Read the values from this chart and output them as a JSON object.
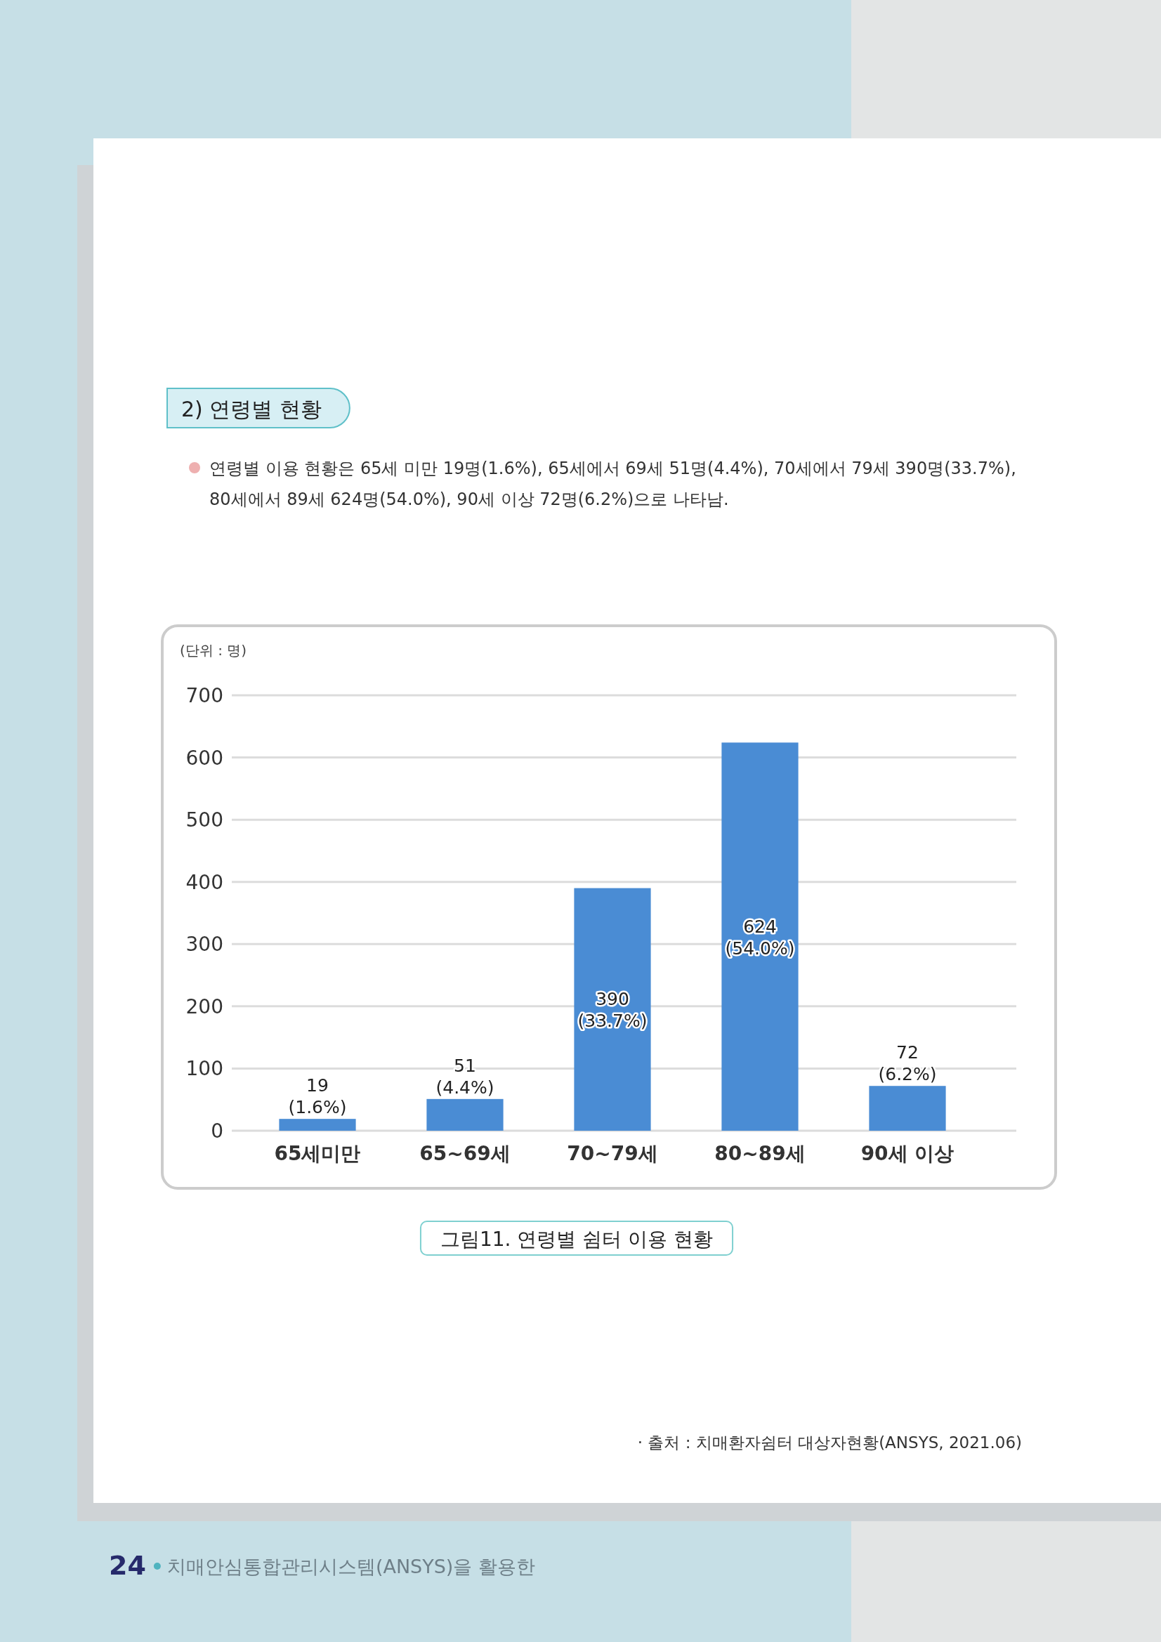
{
  "chart_data": {
    "type": "bar",
    "title": "그림11. 연령별 쉼터 이용 현황",
    "ylabel": "(단위 : 명)",
    "categories": [
      "65세미만",
      "65~69세",
      "70~79세",
      "80~89세",
      "90세 이상"
    ],
    "values": [
      19,
      51,
      390,
      624,
      72
    ],
    "color": "#4a8cd4",
    "value_labels": [
      "19\n(1.6%)",
      "51\n(4.4%)",
      "390\n(33.7%)",
      "624\n(54.0%)",
      "72\n(6.2%)"
    ],
    "ylim": [
      0,
      700
    ],
    "yticks": [
      0,
      100,
      200,
      300,
      400,
      500,
      600,
      700
    ],
    "grid": "y",
    "annotations": [
      "2) 연령별 현황",
      "연령별 이용 현황은 65세 미만 19명(1.6%), 65세에서 69세 51명(4.4%), 70세에서 79세 390명(33.7%), 80세에서 89세 624명(54.0%), 90세 이상 72명(6.2%)으로 나타남.",
      "· 출처 : 치매환자쉼터 대상자현황(ANSYS, 2021.06)",
      "24",
      "치매안심통합관리시스템(ANSYS)을 활용한"
    ]
  }
}
